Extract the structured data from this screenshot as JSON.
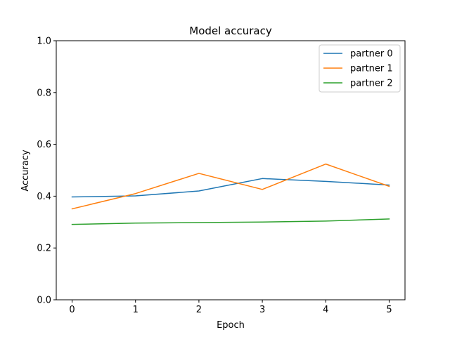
{
  "chart_data": {
    "type": "line",
    "title": "Model accuracy",
    "xlabel": "Epoch",
    "ylabel": "Accuracy",
    "x": [
      0,
      1,
      2,
      3,
      4,
      5
    ],
    "xlim": [
      -0.25,
      5.25
    ],
    "ylim": [
      0.0,
      1.0
    ],
    "xticks": [
      "0",
      "1",
      "2",
      "3",
      "4",
      "5"
    ],
    "yticks": [
      "0.0",
      "0.2",
      "0.4",
      "0.6",
      "0.8",
      "1.0"
    ],
    "grid": false,
    "legend_position": "top-right",
    "series": [
      {
        "name": "partner 0",
        "color": "#1f77b4",
        "values": [
          0.397,
          0.401,
          0.42,
          0.468,
          0.457,
          0.443
        ]
      },
      {
        "name": "partner 1",
        "color": "#ff7f0e",
        "values": [
          0.351,
          0.41,
          0.488,
          0.426,
          0.524,
          0.438
        ]
      },
      {
        "name": "partner 2",
        "color": "#2ca02c",
        "values": [
          0.291,
          0.296,
          0.298,
          0.3,
          0.304,
          0.312
        ]
      }
    ]
  }
}
